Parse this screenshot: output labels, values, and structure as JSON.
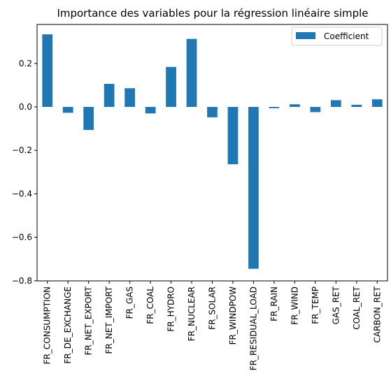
{
  "chart_data": {
    "type": "bar",
    "title": "Importance des variables pour la régression linéaire simple",
    "xlabel": "",
    "ylabel": "",
    "categories": [
      "FR_CONSUMPTION",
      "FR_DE_EXCHANGE",
      "FR_NET_EXPORT",
      "FR_NET_IMPORT",
      "FR_GAS",
      "FR_COAL",
      "FR_HYDRO",
      "FR_NUCLEAR",
      "FR_SOLAR",
      "FR_WINDPOW",
      "FR_RESIDUAL_LOAD",
      "FR_RAIN",
      "FR_WIND",
      "FR_TEMP",
      "GAS_RET",
      "COAL_RET",
      "CARBON_RET"
    ],
    "series": [
      {
        "name": "Coefficient",
        "color": "#1f77b4",
        "values": [
          0.334,
          -0.027,
          -0.106,
          0.106,
          0.086,
          -0.03,
          0.184,
          0.313,
          -0.048,
          -0.264,
          -0.745,
          -0.006,
          0.012,
          -0.024,
          0.031,
          0.01,
          0.035
        ]
      }
    ],
    "ylim": [
      -0.8,
      0.37
    ],
    "yticks": [
      0.2,
      0.0,
      -0.2,
      -0.4,
      -0.6,
      -0.8
    ],
    "ytick_labels": [
      "0.2",
      "0.0",
      "−0.2",
      "−0.4",
      "−0.6",
      "−0.8"
    ],
    "legend_position": "top-right",
    "grid": false
  }
}
